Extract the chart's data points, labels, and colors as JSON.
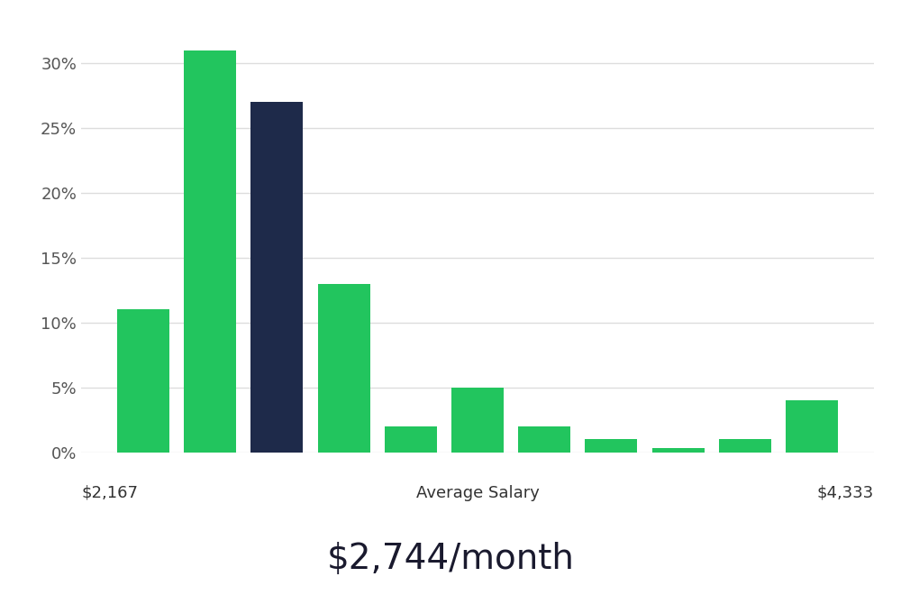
{
  "values": [
    11,
    31,
    27,
    13,
    2,
    5,
    2,
    1,
    0.3,
    1,
    4
  ],
  "bar_colors": [
    "#22c55e",
    "#22c55e",
    "#1e2a4a",
    "#22c55e",
    "#22c55e",
    "#22c55e",
    "#22c55e",
    "#22c55e",
    "#22c55e",
    "#22c55e",
    "#22c55e"
  ],
  "yticks": [
    0,
    5,
    10,
    15,
    20,
    25,
    30
  ],
  "ytick_labels": [
    "0%",
    "5%",
    "10%",
    "15%",
    "20%",
    "25%",
    "30%"
  ],
  "xlabel_left": "$2,167",
  "xlabel_center": "Average Salary",
  "xlabel_right": "$4,333",
  "subtitle": "$2,744/month",
  "background_color": "#ffffff",
  "bar_width": 0.78,
  "grid_color": "#dddddd",
  "subtitle_fontsize": 28,
  "axis_fontsize": 13,
  "ylim_max": 33.5
}
